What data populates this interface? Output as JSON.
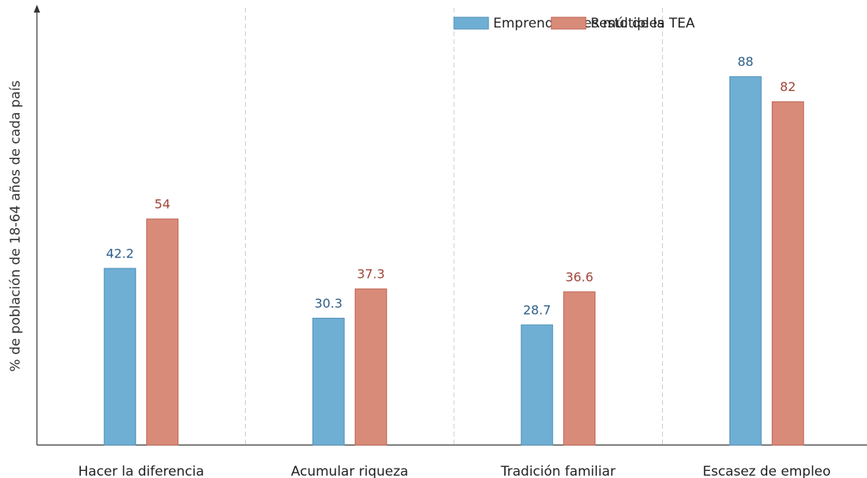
{
  "chart_data": {
    "type": "bar",
    "y_label": "% de población de 18-64 años de cada país",
    "categories": [
      "Hacer la diferencia",
      "Acumular riqueza",
      "Tradición familiar",
      "Escasez de empleo"
    ],
    "series": [
      {
        "name": "Emprendedores múltiples",
        "color": "#6fafd3",
        "values": [
          42.2,
          30.3,
          28.7,
          88
        ]
      },
      {
        "name": "Resto de la TEA",
        "color": "#d98b7a",
        "values": [
          54,
          37.3,
          36.6,
          82
        ]
      }
    ],
    "ylim": [
      0,
      105
    ],
    "legend": "top-right"
  }
}
